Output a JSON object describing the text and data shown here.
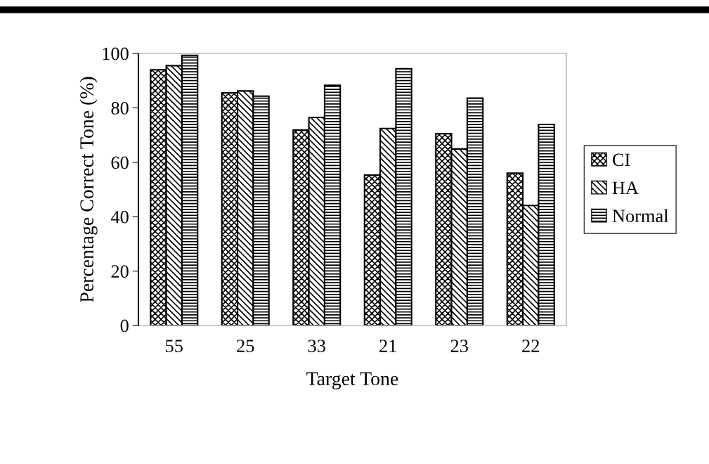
{
  "chart_data": {
    "type": "bar",
    "xlabel": "Target Tone",
    "ylabel": "Percentage Correct Tone (%)",
    "categories": [
      "55",
      "25",
      "33",
      "21",
      "23",
      "22"
    ],
    "series": [
      {
        "name": "CI",
        "color": "#000000",
        "values": [
          94,
          85.5,
          71.8,
          55.3,
          70.5,
          56
        ]
      },
      {
        "name": "HA",
        "color": "#000000",
        "values": [
          95.5,
          86.2,
          76.5,
          72.4,
          64.9,
          44.1
        ]
      },
      {
        "name": "Normal",
        "color": "#000000",
        "values": [
          99.3,
          84.3,
          88.3,
          94.4,
          83.6,
          73.9
        ]
      }
    ],
    "ylim": [
      0,
      100
    ],
    "yticks": [
      0,
      20,
      40,
      60,
      80,
      100
    ],
    "grid": false,
    "legend": "right"
  }
}
